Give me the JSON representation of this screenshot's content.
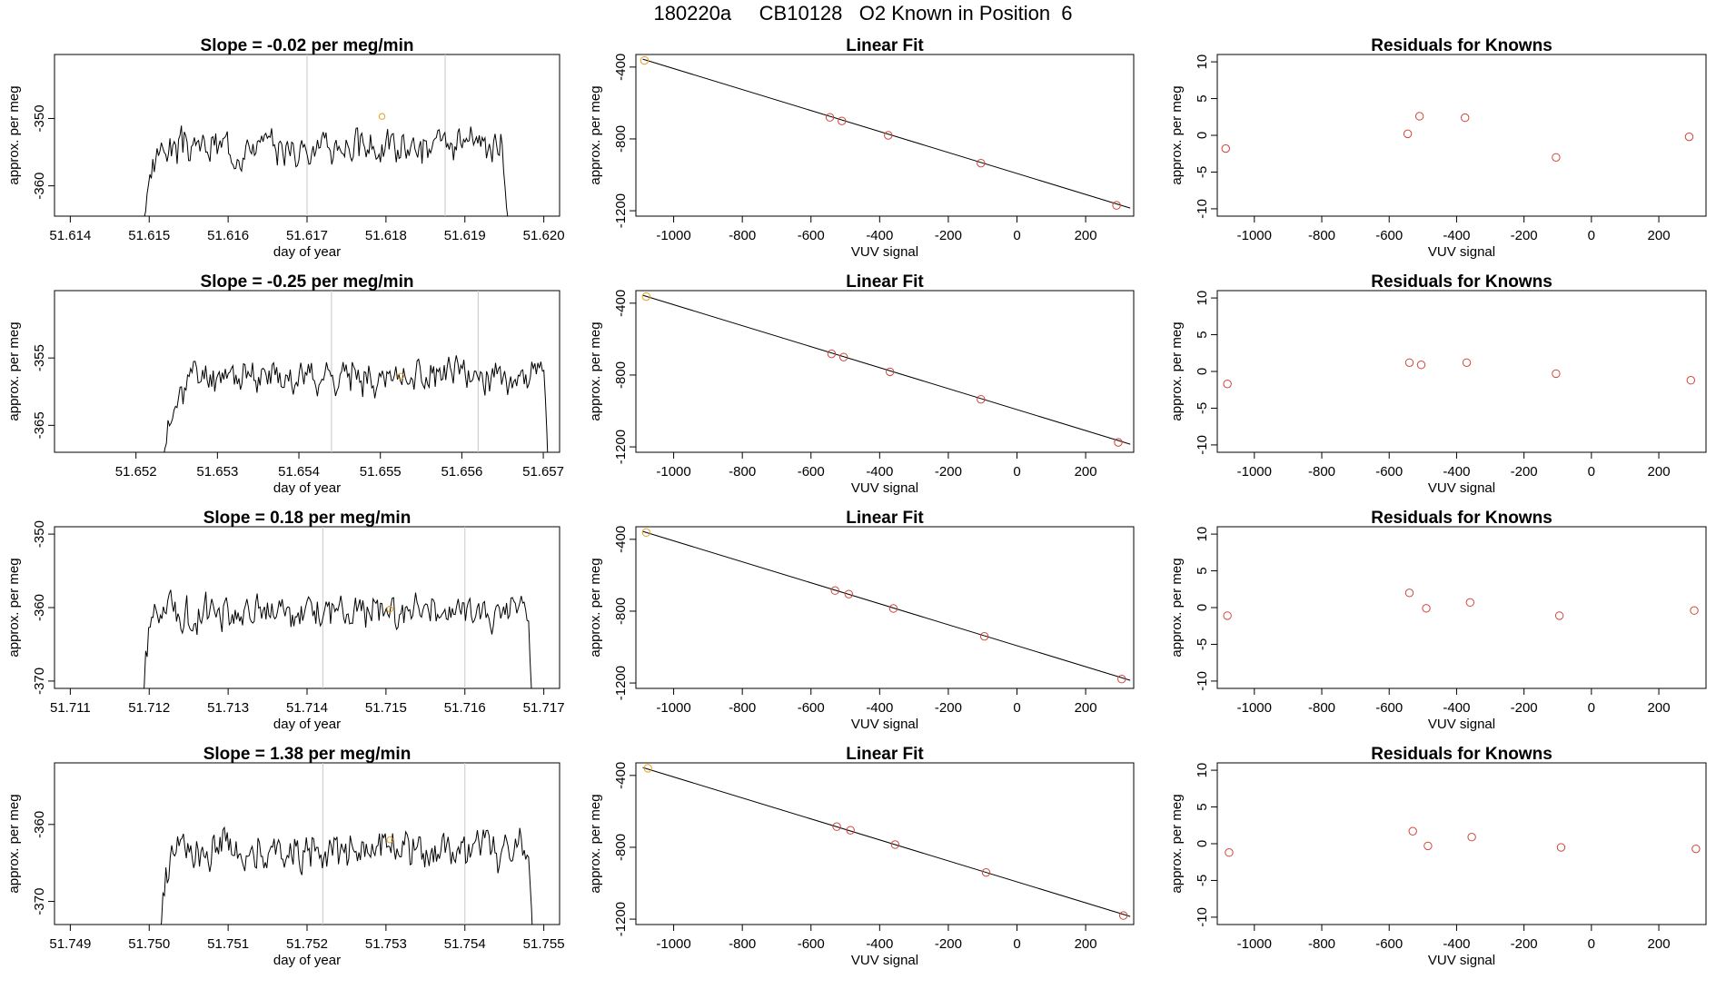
{
  "title": "180220a     CB10128   O2 Known in Position  6",
  "colors": {
    "line": "#000000",
    "point": "#d0453a",
    "known": "#e8a020",
    "vline": "#c8c8c8"
  },
  "chart_data": [
    {
      "type": "line",
      "title": "Slope =  -0.02  per meg/min",
      "xlabel": "day of year",
      "ylabel": "approx. per meg",
      "xlim": [
        51.6138,
        51.6202
      ],
      "ylim": [
        -364.5,
        -340.5
      ],
      "xticks": [
        "51.614",
        "51.615",
        "51.616",
        "51.617",
        "51.618",
        "51.619",
        "51.620"
      ],
      "yticks": [
        "-350",
        "-360"
      ],
      "vlines": [
        51.617,
        51.61875
      ],
      "series": [
        {
          "x0": 51.6149,
          "x1": 51.6196,
          "n": 260,
          "base": -354.2,
          "amp": 2.0,
          "rise": 0.06,
          "fall": 0.025,
          "seed": 3
        }
      ],
      "known_point": [
        51.61795,
        -349.7
      ]
    },
    {
      "type": "scatter",
      "title": "Linear Fit",
      "xlabel": "VUV signal",
      "ylabel": "approx. per meg",
      "xlim": [
        -1110,
        340
      ],
      "ylim": [
        -1230,
        -330
      ],
      "xticks": [
        "-1000",
        "-800",
        "-600",
        "-400",
        "-200",
        "0",
        "200"
      ],
      "yticks": [
        "-400",
        "-800",
        "-1200"
      ],
      "x": [
        -1085,
        -545,
        -510,
        -375,
        -105,
        290
      ],
      "y": [
        -363,
        -680,
        -700,
        -780,
        -935,
        -1170
      ],
      "fit": [
        [
          -1090,
          -356
        ],
        [
          330,
          -1185
        ]
      ]
    },
    {
      "type": "scatter",
      "title": "Residuals for Knowns",
      "xlabel": "VUV signal",
      "ylabel": "approx. per meg",
      "xlim": [
        -1110,
        340
      ],
      "ylim": [
        -11,
        11
      ],
      "xticks": [
        "-1000",
        "-800",
        "-600",
        "-400",
        "-200",
        "0",
        "200"
      ],
      "yticks": [
        "10",
        "5",
        "0",
        "-5",
        "-10"
      ],
      "x": [
        -1085,
        -545,
        -510,
        -375,
        -105,
        290
      ],
      "y": [
        -1.8,
        0.2,
        2.6,
        2.4,
        -3.0,
        -0.2
      ]
    },
    {
      "type": "line",
      "title": "Slope =  -0.25  per meg/min",
      "xlabel": "day of year",
      "ylabel": "approx. per meg",
      "xlim": [
        51.651,
        51.6572
      ],
      "ylim": [
        -369,
        -345
      ],
      "xticks": [
        "51.652",
        "51.653",
        "51.654",
        "51.655",
        "51.656",
        "51.657"
      ],
      "yticks": [
        "-355",
        "-365"
      ],
      "vlines": [
        51.6544,
        51.6562
      ],
      "series": [
        {
          "x0": 51.6523,
          "x1": 51.6571,
          "n": 260,
          "base": -357.7,
          "amp": 2.0,
          "rise": 0.09,
          "fall": 0.02,
          "seed": 11
        }
      ],
      "known_point": [
        51.65525,
        -357.7
      ]
    },
    {
      "type": "scatter",
      "title": "Linear Fit",
      "xlabel": "VUV signal",
      "ylabel": "approx. per meg",
      "xlim": [
        -1110,
        340
      ],
      "ylim": [
        -1230,
        -330
      ],
      "xticks": [
        "-1000",
        "-800",
        "-600",
        "-400",
        "-200",
        "0",
        "200"
      ],
      "yticks": [
        "-400",
        "-800",
        "-1200"
      ],
      "x": [
        -1080,
        -540,
        -505,
        -370,
        -105,
        295
      ],
      "y": [
        -363,
        -682,
        -700,
        -782,
        -935,
        -1175
      ],
      "fit": [
        [
          -1090,
          -356
        ],
        [
          330,
          -1185
        ]
      ]
    },
    {
      "type": "scatter",
      "title": "Residuals for Knowns",
      "xlabel": "VUV signal",
      "ylabel": "approx. per meg",
      "xlim": [
        -1110,
        340
      ],
      "ylim": [
        -11,
        11
      ],
      "xticks": [
        "-1000",
        "-800",
        "-600",
        "-400",
        "-200",
        "0",
        "200"
      ],
      "yticks": [
        "10",
        "5",
        "0",
        "-5",
        "-10"
      ],
      "x": [
        -1080,
        -540,
        -505,
        -370,
        -105,
        295
      ],
      "y": [
        -1.7,
        1.2,
        0.9,
        1.2,
        -0.3,
        -1.2
      ]
    },
    {
      "type": "line",
      "title": "Slope =  0.18  per meg/min",
      "xlabel": "day of year",
      "ylabel": "approx. per meg",
      "xlim": [
        51.7108,
        51.7172
      ],
      "ylim": [
        -371,
        -349
      ],
      "xticks": [
        "51.711",
        "51.712",
        "51.713",
        "51.714",
        "51.715",
        "51.716",
        "51.717"
      ],
      "yticks": [
        "-350",
        "-360",
        "-370"
      ],
      "vlines": [
        51.7142,
        51.716
      ],
      "series": [
        {
          "x0": 51.7119,
          "x1": 51.7169,
          "n": 270,
          "base": -360.6,
          "amp": 1.9,
          "rise": 0.04,
          "fall": 0.02,
          "seed": 21
        }
      ],
      "known_point": [
        51.71505,
        -360.2
      ]
    },
    {
      "type": "scatter",
      "title": "Linear Fit",
      "xlabel": "VUV signal",
      "ylabel": "approx. per meg",
      "xlim": [
        -1110,
        340
      ],
      "ylim": [
        -1230,
        -330
      ],
      "xticks": [
        "-1000",
        "-800",
        "-600",
        "-400",
        "-200",
        "0",
        "200"
      ],
      "yticks": [
        "-400",
        "-800",
        "-1200"
      ],
      "x": [
        -1080,
        -530,
        -490,
        -360,
        -95,
        305
      ],
      "y": [
        -362,
        -685,
        -705,
        -785,
        -940,
        -1178
      ],
      "fit": [
        [
          -1090,
          -356
        ],
        [
          330,
          -1185
        ]
      ]
    },
    {
      "type": "scatter",
      "title": "Residuals for Knowns",
      "xlabel": "VUV signal",
      "ylabel": "approx. per meg",
      "xlim": [
        -1110,
        340
      ],
      "ylim": [
        -11,
        11
      ],
      "xticks": [
        "-1000",
        "-800",
        "-600",
        "-400",
        "-200",
        "0",
        "200"
      ],
      "yticks": [
        "10",
        "5",
        "0",
        "-5",
        "-10"
      ],
      "x": [
        -1080,
        -540,
        -490,
        -360,
        -95,
        305
      ],
      "y": [
        -1.1,
        2.0,
        -0.1,
        0.7,
        -1.1,
        -0.4
      ]
    },
    {
      "type": "line",
      "title": "Slope =  1.38  per meg/min",
      "xlabel": "day of year",
      "ylabel": "approx. per meg",
      "xlim": [
        51.7488,
        51.7552
      ],
      "ylim": [
        -373,
        -352
      ],
      "xticks": [
        "51.749",
        "51.750",
        "51.751",
        "51.752",
        "51.753",
        "51.754",
        "51.755"
      ],
      "yticks": [
        "-360",
        "-370"
      ],
      "vlines": [
        51.7522,
        51.754
      ],
      "series": [
        {
          "x0": 51.7501,
          "x1": 51.7549,
          "n": 260,
          "base": -363.4,
          "amp": 2.0,
          "rise": 0.05,
          "fall": 0.02,
          "seed": 33
        }
      ],
      "known_point": [
        51.75305,
        -362.0
      ]
    },
    {
      "type": "scatter",
      "title": "Linear Fit",
      "xlabel": "VUV signal",
      "ylabel": "approx. per meg",
      "xlim": [
        -1110,
        340
      ],
      "ylim": [
        -1230,
        -330
      ],
      "xticks": [
        "-1000",
        "-800",
        "-600",
        "-400",
        "-200",
        "0",
        "200"
      ],
      "yticks": [
        "-400",
        "-800",
        "-1200"
      ],
      "x": [
        -1075,
        -525,
        -485,
        -355,
        -90,
        310
      ],
      "y": [
        -360,
        -685,
        -705,
        -785,
        -940,
        -1180
      ],
      "fit": [
        [
          -1090,
          -356
        ],
        [
          330,
          -1185
        ]
      ]
    },
    {
      "type": "scatter",
      "title": "Residuals for Knowns",
      "xlabel": "VUV signal",
      "ylabel": "approx. per meg",
      "xlim": [
        -1110,
        340
      ],
      "ylim": [
        -11,
        11
      ],
      "xticks": [
        "-1000",
        "-800",
        "-600",
        "-400",
        "-200",
        "0",
        "200"
      ],
      "yticks": [
        "10",
        "5",
        "0",
        "-5",
        "-10"
      ],
      "x": [
        -1075,
        -530,
        -485,
        -355,
        -90,
        310
      ],
      "y": [
        -1.2,
        1.7,
        -0.3,
        0.9,
        -0.5,
        -0.7
      ]
    }
  ]
}
